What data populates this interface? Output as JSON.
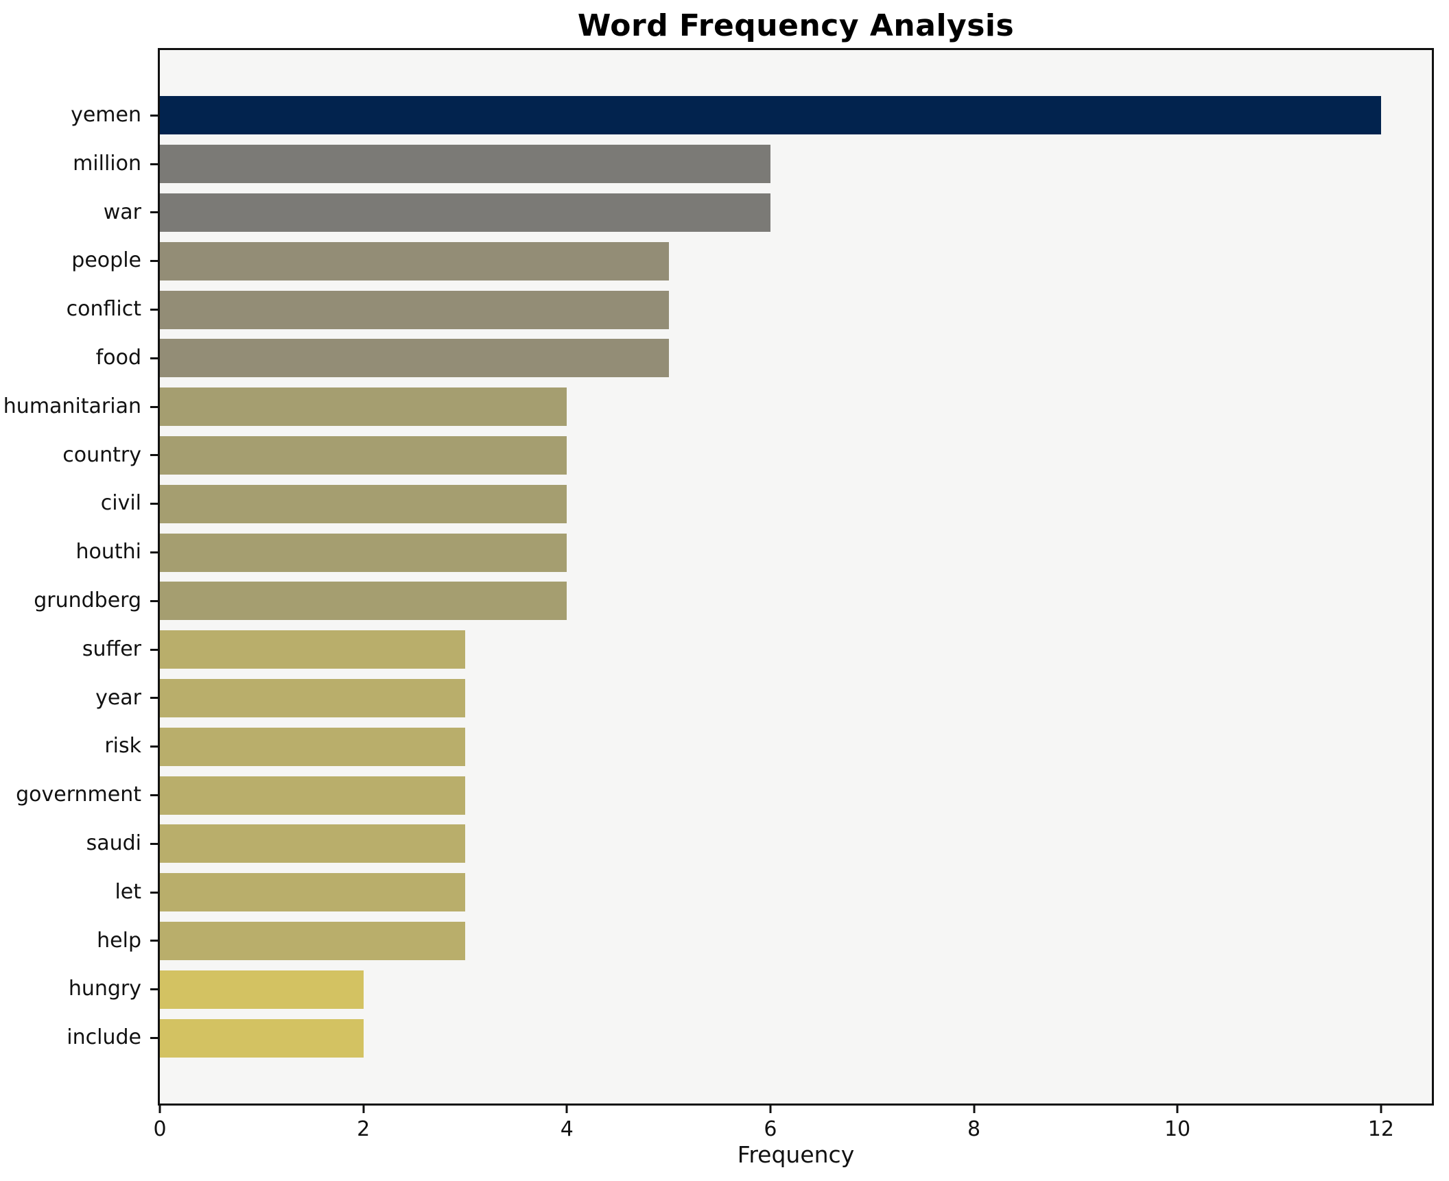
{
  "chart_data": {
    "type": "bar",
    "orientation": "horizontal",
    "title": "Word Frequency Analysis",
    "xlabel": "Frequency",
    "ylabel": "",
    "categories": [
      "yemen",
      "million",
      "war",
      "people",
      "conflict",
      "food",
      "humanitarian",
      "country",
      "civil",
      "houthi",
      "grundberg",
      "suffer",
      "year",
      "risk",
      "government",
      "saudi",
      "let",
      "help",
      "hungry",
      "include"
    ],
    "values": [
      12,
      6,
      6,
      5,
      5,
      5,
      4,
      4,
      4,
      4,
      4,
      3,
      3,
      3,
      3,
      3,
      3,
      3,
      2,
      2
    ],
    "bar_colors": [
      "#02234e",
      "#7b7a76",
      "#7b7a76",
      "#938d76",
      "#938d76",
      "#938d76",
      "#a59e70",
      "#a59e70",
      "#a59e70",
      "#a59e70",
      "#a59e70",
      "#b9ae6b",
      "#b9ae6b",
      "#b9ae6b",
      "#b9ae6b",
      "#b9ae6b",
      "#b9ae6b",
      "#b9ae6b",
      "#d3c262",
      "#d3c262"
    ],
    "xlim": [
      0,
      12.5
    ],
    "xticks": [
      0,
      2,
      4,
      6,
      8,
      10,
      12
    ],
    "grid": false,
    "legend": false,
    "plot_bg": "#f6f6f5",
    "figure_bg": "#ffffff",
    "spine_color": "#111111"
  }
}
